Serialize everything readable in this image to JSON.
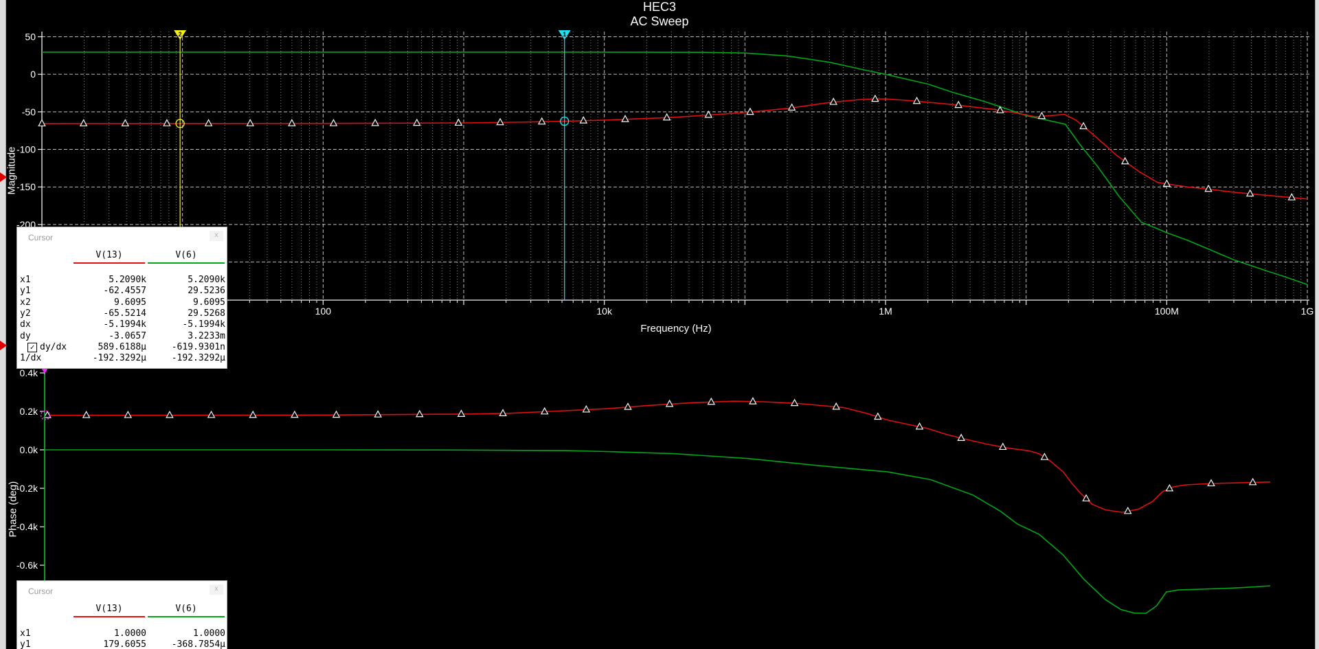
{
  "title": {
    "line1": "HEC3",
    "line2": "AC Sweep"
  },
  "colors": {
    "background": "#000000",
    "trace_v13": "#e01010",
    "trace_v6": "#00a818",
    "grid_major": "#bdbdbd",
    "grid_minor": "#8a8a8a",
    "axis": "#f2f2f2",
    "cursor1": "#20dff0",
    "cursor2": "#f5ee18",
    "phase_cursor_line": "#00bb22",
    "phase_cursor_magenta": "#ff22ff",
    "phase_cursor_dot": "#ffe600",
    "selection_arrow": "#e00000"
  },
  "chart_data": [
    {
      "type": "line",
      "name": "magnitude",
      "title": "HEC3",
      "subtitle": "AC Sweep",
      "x_axis": {
        "scale": "log",
        "min_hz": 1,
        "max_hz": 1000000000,
        "label": "Frequency (Hz)",
        "tick_labels": [
          {
            "hz": 100,
            "label": "100"
          },
          {
            "hz": 10000,
            "label": "10k"
          },
          {
            "hz": 1000000,
            "label": "1M"
          },
          {
            "hz": 100000000,
            "label": "100M"
          },
          {
            "hz": 1000000000,
            "label": "1G"
          }
        ]
      },
      "y_axis": {
        "label": "Magnitude",
        "min": -300,
        "max": 57,
        "grid_step": 50,
        "tick_labels": [
          {
            "v": 50,
            "label": "50"
          },
          {
            "v": 0,
            "label": "0"
          },
          {
            "v": -50,
            "label": "-50"
          },
          {
            "v": -100,
            "label": "-100"
          },
          {
            "v": -150,
            "label": "-150"
          },
          {
            "v": -200,
            "label": "-200"
          }
        ]
      },
      "grid": true,
      "legend_position": "none",
      "series": [
        {
          "name": "V(13)",
          "color": "#e01010",
          "marker": "open-triangle",
          "points": [
            [
              1,
              -65.6
            ],
            [
              10,
              -65.5
            ],
            [
              100,
              -65.4
            ],
            [
              1000,
              -64.8
            ],
            [
              3000,
              -63.5
            ],
            [
              5209,
              -62.46
            ],
            [
              10000,
              -61
            ],
            [
              30000,
              -57.5
            ],
            [
              100000,
              -51
            ],
            [
              200000,
              -45.5
            ],
            [
              400000,
              -37.5
            ],
            [
              700000,
              -33.2
            ],
            [
              1000000,
              -32.8
            ],
            [
              1600000,
              -35.5
            ],
            [
              3000000,
              -40.3
            ],
            [
              5700000,
              -46.4
            ],
            [
              8500000,
              -51.5
            ],
            [
              11600000,
              -56.5
            ],
            [
              15000000,
              -55
            ],
            [
              18700000,
              -53.3
            ],
            [
              22600000,
              -61
            ],
            [
              31600000,
              -84
            ],
            [
              44000000,
              -108
            ],
            [
              64000000,
              -130
            ],
            [
              86000000,
              -144
            ],
            [
              100000000,
              -146
            ],
            [
              140000000,
              -150
            ],
            [
              200000000,
              -153
            ],
            [
              300000000,
              -157
            ],
            [
              500000000,
              -161
            ],
            [
              1000000000,
              -166
            ]
          ]
        },
        {
          "name": "V(6)",
          "color": "#00a818",
          "marker": null,
          "points": [
            [
              1,
              29.52
            ],
            [
              1000,
              29.52
            ],
            [
              10000,
              29.52
            ],
            [
              50000,
              29.2
            ],
            [
              100000,
              28.3
            ],
            [
              200000,
              24.5
            ],
            [
              400000,
              16
            ],
            [
              700000,
              6
            ],
            [
              1000000,
              0
            ],
            [
              2000000,
              -13
            ],
            [
              3000000,
              -24
            ],
            [
              5000000,
              -36
            ],
            [
              7000000,
              -45
            ],
            [
              10000000,
              -55
            ],
            [
              14000000,
              -61
            ],
            [
              19000000,
              -66.5
            ],
            [
              24000000,
              -93
            ],
            [
              32000000,
              -122
            ],
            [
              46000000,
              -163
            ],
            [
              66000000,
              -197
            ],
            [
              84000000,
              -205
            ],
            [
              100000000,
              -211
            ],
            [
              140000000,
              -221
            ],
            [
              200000000,
              -233
            ],
            [
              300000000,
              -247
            ],
            [
              500000000,
              -261
            ],
            [
              700000000,
              -270
            ],
            [
              1000000000,
              -280
            ]
          ]
        }
      ],
      "cursors": [
        {
          "id": "1",
          "color": "#20dff0",
          "hz": 5209.0,
          "value": -62.4557,
          "on_series": "V(13)"
        },
        {
          "id": "2",
          "color": "#f5ee18",
          "hz": 9.6095,
          "value": -65.5214,
          "on_series": "V(13)"
        }
      ]
    },
    {
      "type": "line",
      "name": "phase",
      "x_axis": {
        "scale": "log",
        "min_hz": 1,
        "max_hz": 1000000000,
        "shared_with": "magnitude",
        "trace_end_hz": 520000000
      },
      "y_axis": {
        "label": "Phase (deg)",
        "tick_labels": [
          {
            "v": 400,
            "label": "0.4k"
          },
          {
            "v": 200,
            "label": "0.2k"
          },
          {
            "v": 0,
            "label": "0.0k"
          },
          {
            "v": -200,
            "label": "-0.2k"
          },
          {
            "v": -400,
            "label": "-0.4k"
          },
          {
            "v": -600,
            "label": "-0.6k"
          }
        ]
      },
      "grid": false,
      "series": [
        {
          "name": "V(13)",
          "color": "#e01010",
          "marker": "open-triangle",
          "points": [
            [
              1,
              179.6
            ],
            [
              10,
              180
            ],
            [
              100,
              181
            ],
            [
              1000,
              186
            ],
            [
              2000,
              190
            ],
            [
              4000,
              200
            ],
            [
              10000,
              214
            ],
            [
              20000,
              231
            ],
            [
              40000,
              245
            ],
            [
              80000,
              253
            ],
            [
              130000,
              250
            ],
            [
              230000,
              241
            ],
            [
              480000,
              220
            ],
            [
              700000,
              190
            ],
            [
              1000000,
              154
            ],
            [
              1900000,
              111
            ],
            [
              2600000,
              80
            ],
            [
              3600000,
              54
            ],
            [
              5000000,
              30
            ],
            [
              7000000,
              10
            ],
            [
              10000000,
              -5
            ],
            [
              11800000,
              -20
            ],
            [
              14000000,
              -55
            ],
            [
              17500000,
              -114
            ],
            [
              20000000,
              -170
            ],
            [
              23000000,
              -221
            ],
            [
              28000000,
              -282
            ],
            [
              35000000,
              -312
            ],
            [
              46000000,
              -325
            ],
            [
              60000000,
              -309
            ],
            [
              76000000,
              -268
            ],
            [
              89000000,
              -218
            ],
            [
              107000000,
              -192
            ],
            [
              130000000,
              -182
            ],
            [
              200000000,
              -175
            ],
            [
              320000000,
              -171
            ],
            [
              520000000,
              -167
            ]
          ]
        },
        {
          "name": "V(6)",
          "color": "#00a818",
          "marker": null,
          "points": [
            [
              1,
              -0.00037
            ],
            [
              100,
              0
            ],
            [
              1000,
              -1
            ],
            [
              5000,
              -4
            ],
            [
              10000,
              -9
            ],
            [
              30000,
              -20
            ],
            [
              100000,
              -45
            ],
            [
              300000,
              -80
            ],
            [
              1000000,
              -115
            ],
            [
              2000000,
              -155
            ],
            [
              4000000,
              -235
            ],
            [
              6300000,
              -320
            ],
            [
              8300000,
              -386
            ],
            [
              11800000,
              -439
            ],
            [
              17500000,
              -546
            ],
            [
              24500000,
              -671
            ],
            [
              35000000,
              -779
            ],
            [
              45000000,
              -830
            ],
            [
              56000000,
              -849
            ],
            [
              68000000,
              -850
            ],
            [
              81000000,
              -811
            ],
            [
              95000000,
              -739
            ],
            [
              115000000,
              -729
            ],
            [
              180000000,
              -724
            ],
            [
              280000000,
              -719
            ],
            [
              400000000,
              -713
            ],
            [
              520000000,
              -707
            ]
          ]
        }
      ],
      "cursors": [
        {
          "id": "1",
          "hz": 1.0,
          "value": 179.6055,
          "on_series": "V(13)",
          "line_color": "#00bb22",
          "marker_colors": [
            "#20dff0",
            "#ff22ff"
          ],
          "dot_color": "#ffe600"
        }
      ]
    }
  ],
  "cursor_windows": [
    {
      "title": "Cursor",
      "close_label": "x",
      "columns": [
        "V(13)",
        "V(6)"
      ],
      "column_colors": [
        "#e01010",
        "#00a818"
      ],
      "rows": [
        {
          "label": "x1",
          "v13": "5.2090k",
          "v6": "5.2090k",
          "checked": false
        },
        {
          "label": "y1",
          "v13": "-62.4557",
          "v6": "29.5236",
          "checked": false
        },
        {
          "label": "x2",
          "v13": "9.6095",
          "v6": "9.6095",
          "checked": false
        },
        {
          "label": "y2",
          "v13": "-65.5214",
          "v6": "29.5268",
          "checked": false
        },
        {
          "label": "dx",
          "v13": "-5.1994k",
          "v6": "-5.1994k",
          "checked": false
        },
        {
          "label": "dy",
          "v13": "-3.0657",
          "v6": "3.2233m",
          "checked": false
        },
        {
          "label": "dy/dx",
          "v13": "589.6188µ",
          "v6": "-619.9301n",
          "checked": true
        },
        {
          "label": "1/dx",
          "v13": "-192.3292µ",
          "v6": "-192.3292µ",
          "checked": false
        }
      ],
      "checkmark": "✓"
    },
    {
      "title": "Cursor",
      "close_label": "x",
      "columns": [
        "V(13)",
        "V(6)"
      ],
      "column_colors": [
        "#e01010",
        "#00a818"
      ],
      "rows": [
        {
          "label": "x1",
          "v13": "1.0000",
          "v6": "1.0000",
          "checked": false
        },
        {
          "label": "y1",
          "v13": "179.6055",
          "v6": "-368.7854µ",
          "checked": false
        }
      ],
      "checkmark": "✓"
    }
  ]
}
